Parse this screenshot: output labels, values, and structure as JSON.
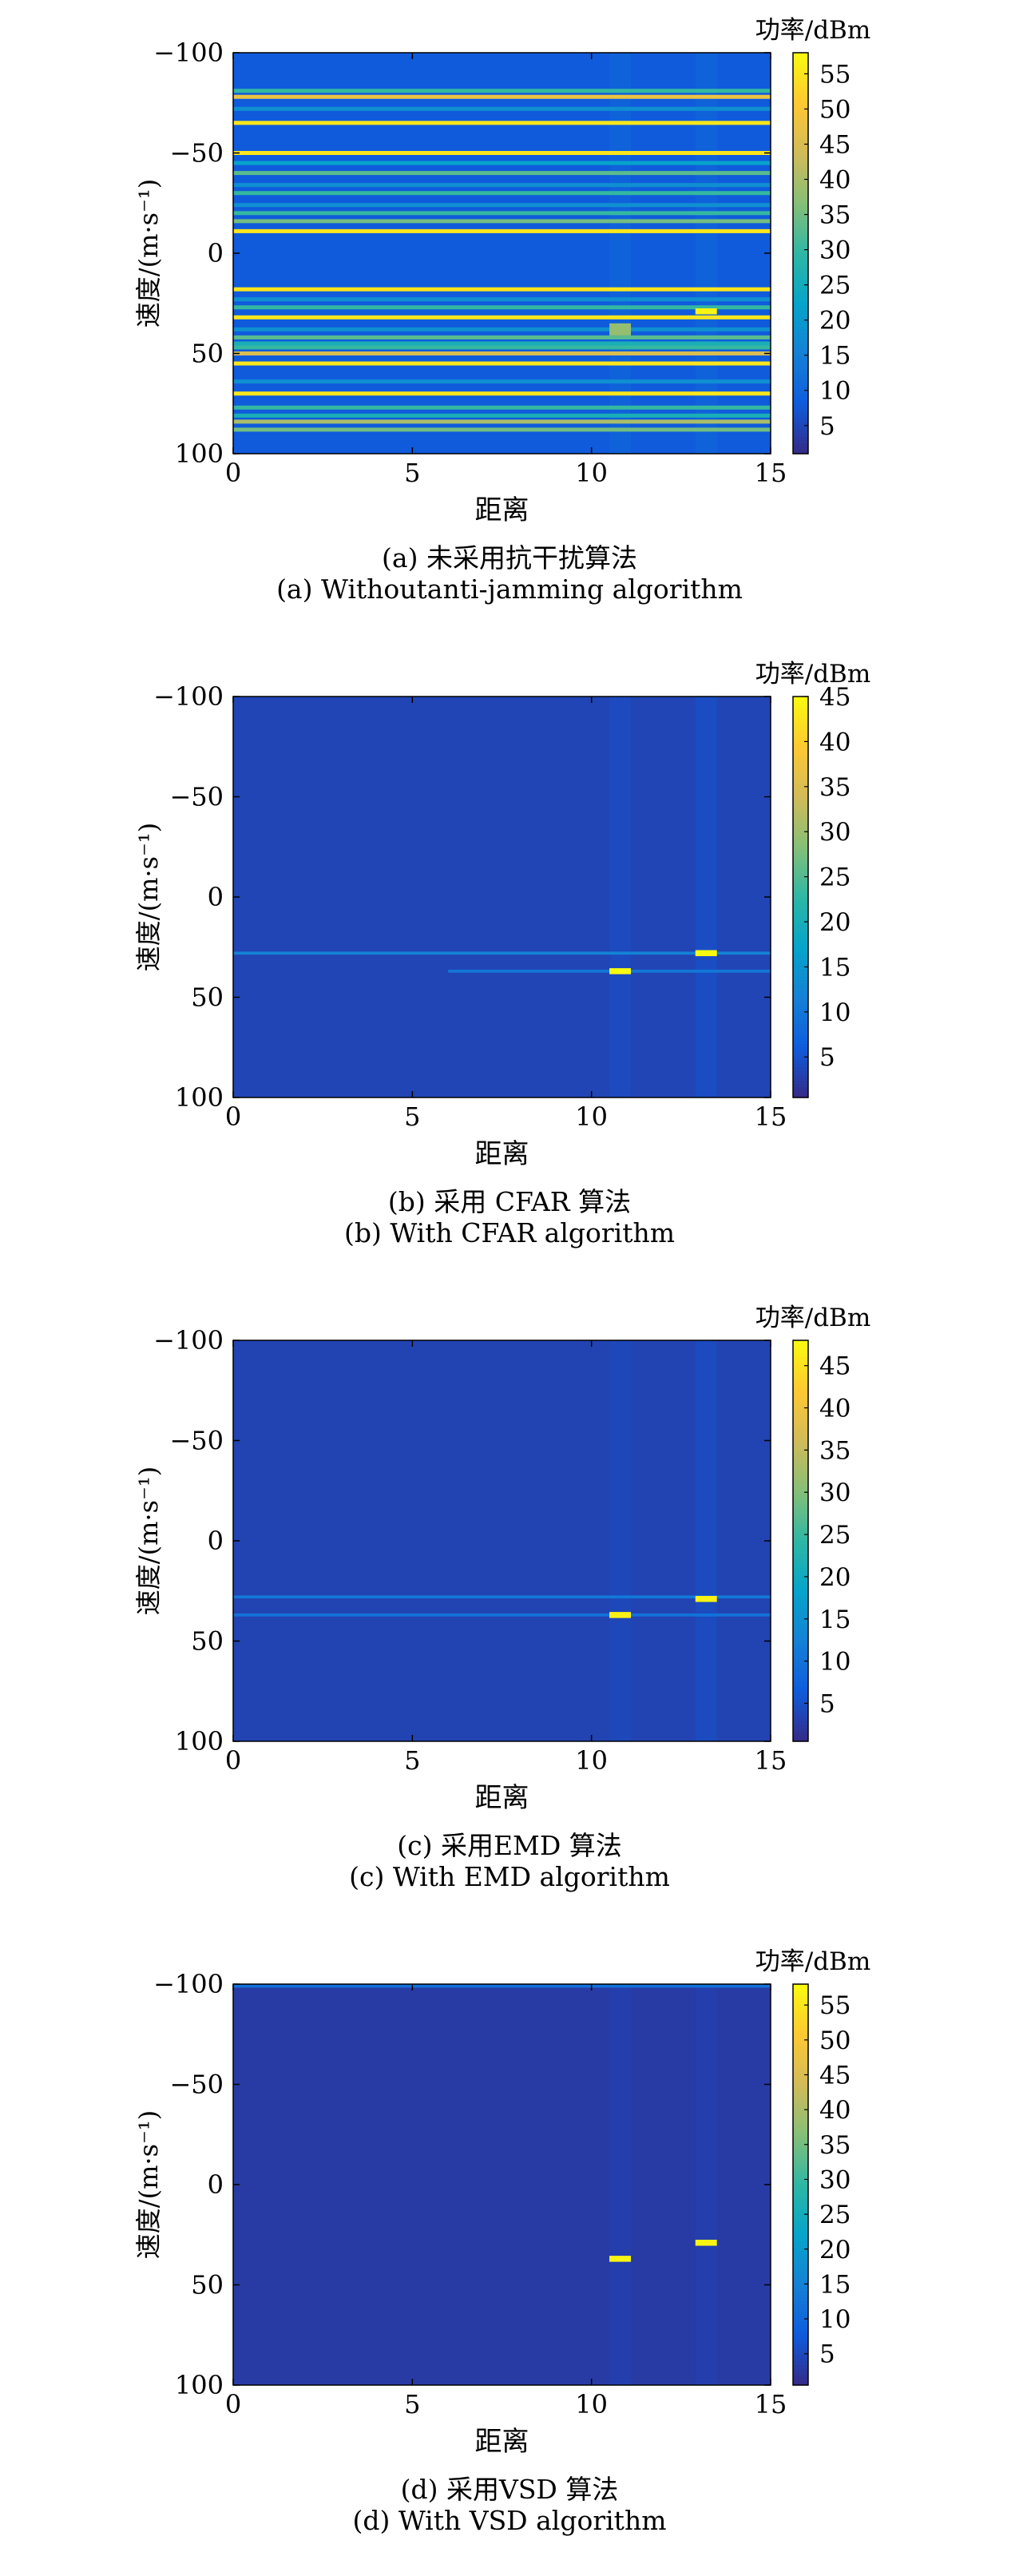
{
  "chart_data": [
    {
      "type": "heatmap",
      "panel_id": "a",
      "caption_zh": "(a) 未采用抗干扰算法",
      "caption_en": "(a) Withoutanti-jamming algorithm",
      "xlabel": "距离",
      "ylabel": "速度/(m·s⁻¹)",
      "colorbar_label": "功率/dBm",
      "xlim": [
        0,
        15
      ],
      "ylim": [
        -100,
        100
      ],
      "y_reversed": true,
      "x_ticks": [
        0,
        5,
        10,
        15
      ],
      "y_ticks": [
        -100,
        -50,
        0,
        50,
        100
      ],
      "x_tick_labels": [
        "0",
        "5",
        "10",
        "15"
      ],
      "y_tick_labels": [
        "−100",
        "−50",
        "0",
        "50",
        "100"
      ],
      "clim": [
        1,
        58
      ],
      "colorbar_ticks": [
        5,
        10,
        15,
        20,
        25,
        30,
        35,
        40,
        45,
        50,
        55
      ],
      "colorbar_tick_labels": [
        "5",
        "10",
        "15",
        "20",
        "25",
        "30",
        "35",
        "40",
        "45",
        "50",
        "55"
      ],
      "background_level": 8,
      "stripes": [
        {
          "y": -81,
          "level": 30,
          "width": 2
        },
        {
          "y": -78,
          "level": 48,
          "width": 2
        },
        {
          "y": -72,
          "level": 18,
          "width": 2
        },
        {
          "y": -65,
          "level": 55,
          "width": 2
        },
        {
          "y": -50,
          "level": 55,
          "width": 2
        },
        {
          "y": -45,
          "level": 22,
          "width": 2
        },
        {
          "y": -40,
          "level": 33,
          "width": 2
        },
        {
          "y": -34,
          "level": 18,
          "width": 2
        },
        {
          "y": -30,
          "level": 30,
          "width": 2
        },
        {
          "y": -24,
          "level": 18,
          "width": 2
        },
        {
          "y": -20,
          "level": 30,
          "width": 2
        },
        {
          "y": -16,
          "level": 35,
          "width": 2
        },
        {
          "y": -11,
          "level": 55,
          "width": 2
        },
        {
          "y": 18,
          "level": 55,
          "width": 2
        },
        {
          "y": 23,
          "level": 18,
          "width": 2
        },
        {
          "y": 27,
          "level": 30,
          "width": 2
        },
        {
          "y": 32,
          "level": 55,
          "width": 2
        },
        {
          "y": 38,
          "level": 18,
          "width": 2
        },
        {
          "y": 42,
          "level": 33,
          "width": 2
        },
        {
          "y": 45,
          "level": 26,
          "width": 2
        },
        {
          "y": 47,
          "level": 30,
          "width": 2
        },
        {
          "y": 50,
          "level": 45,
          "width": 2
        },
        {
          "y": 55,
          "level": 55,
          "width": 2
        },
        {
          "y": 64,
          "level": 18,
          "width": 2
        },
        {
          "y": 70,
          "level": 55,
          "width": 2
        },
        {
          "y": 77,
          "level": 30,
          "width": 2
        },
        {
          "y": 81,
          "level": 26,
          "width": 2
        },
        {
          "y": 84,
          "level": 40,
          "width": 2
        },
        {
          "y": 88,
          "level": 35,
          "width": 2
        }
      ],
      "targets": [
        {
          "x": [
            10.5,
            11.1
          ],
          "y": 38,
          "level": 38,
          "height": 6,
          "column_level": 12
        },
        {
          "x": [
            12.9,
            13.5
          ],
          "y": 29,
          "level": 57,
          "height": 3,
          "column_level": 12
        }
      ]
    },
    {
      "type": "heatmap",
      "panel_id": "b",
      "caption_zh": "(b) 采用 CFAR 算法",
      "caption_en": "(b) With CFAR algorithm",
      "xlabel": "距离",
      "ylabel": "速度/(m·s⁻¹)",
      "colorbar_label": "功率/dBm",
      "xlim": [
        0,
        15
      ],
      "ylim": [
        -100,
        100
      ],
      "y_reversed": true,
      "x_ticks": [
        0,
        5,
        10,
        15
      ],
      "y_ticks": [
        -100,
        -50,
        0,
        50,
        100
      ],
      "x_tick_labels": [
        "0",
        "5",
        "10",
        "15"
      ],
      "y_tick_labels": [
        "−100",
        "−50",
        "0",
        "50",
        "100"
      ],
      "clim": [
        0.5,
        45
      ],
      "colorbar_ticks": [
        5,
        10,
        15,
        20,
        25,
        30,
        35,
        40,
        45
      ],
      "colorbar_tick_labels": [
        "5",
        "10",
        "15",
        "20",
        "25",
        "30",
        "35",
        "40",
        "45"
      ],
      "background_level": 3.5,
      "stripes": [
        {
          "y": 28,
          "level": 12,
          "width": 1.5,
          "x_range": [
            0,
            15
          ]
        },
        {
          "y": 37,
          "level": 10,
          "width": 1.5,
          "x_range": [
            6,
            15
          ]
        }
      ],
      "targets": [
        {
          "x": [
            10.5,
            11.1
          ],
          "y": 37,
          "level": 45,
          "height": 3,
          "column_level": 5
        },
        {
          "x": [
            12.9,
            13.5
          ],
          "y": 28,
          "level": 45,
          "height": 3,
          "column_level": 6
        }
      ]
    },
    {
      "type": "heatmap",
      "panel_id": "c",
      "caption_zh": "(c) 采用EMD 算法",
      "caption_en": "(c) With EMD algorithm",
      "xlabel": "距离",
      "ylabel": "速度/(m·s⁻¹)",
      "colorbar_label": "功率/dBm",
      "xlim": [
        0,
        15
      ],
      "ylim": [
        -100,
        100
      ],
      "y_reversed": true,
      "x_ticks": [
        0,
        5,
        10,
        15
      ],
      "y_ticks": [
        -100,
        -50,
        0,
        50,
        100
      ],
      "x_tick_labels": [
        "0",
        "5",
        "10",
        "15"
      ],
      "y_tick_labels": [
        "−100",
        "−50",
        "0",
        "50",
        "100"
      ],
      "clim": [
        0.5,
        48
      ],
      "colorbar_ticks": [
        5,
        10,
        15,
        20,
        25,
        30,
        35,
        40,
        45
      ],
      "colorbar_tick_labels": [
        "5",
        "10",
        "15",
        "20",
        "25",
        "30",
        "35",
        "40",
        "45"
      ],
      "background_level": 3.5,
      "stripes": [
        {
          "y": 28,
          "level": 11,
          "width": 1.5,
          "x_range": [
            0,
            15
          ]
        },
        {
          "y": 37,
          "level": 10,
          "width": 1.5,
          "x_range": [
            0,
            15
          ]
        }
      ],
      "targets": [
        {
          "x": [
            10.5,
            11.1
          ],
          "y": 37,
          "level": 47,
          "height": 3,
          "column_level": 5
        },
        {
          "x": [
            12.9,
            13.5
          ],
          "y": 29,
          "level": 47,
          "height": 3,
          "column_level": 6
        }
      ]
    },
    {
      "type": "heatmap",
      "panel_id": "d",
      "caption_zh": "(d) 采用VSD 算法",
      "caption_en": "(d) With VSD algorithm",
      "xlabel": "距离",
      "ylabel": "速度/(m·s⁻¹)",
      "colorbar_label": "功率/dBm",
      "xlim": [
        0,
        15
      ],
      "ylim": [
        -100,
        100
      ],
      "y_reversed": true,
      "x_ticks": [
        0,
        5,
        10,
        15
      ],
      "y_ticks": [
        -100,
        -50,
        0,
        50,
        100
      ],
      "x_tick_labels": [
        "0",
        "5",
        "10",
        "15"
      ],
      "y_tick_labels": [
        "−100",
        "−50",
        "0",
        "50",
        "100"
      ],
      "clim": [
        0.5,
        58
      ],
      "colorbar_ticks": [
        5,
        10,
        15,
        20,
        25,
        30,
        35,
        40,
        45,
        50,
        55
      ],
      "colorbar_tick_labels": [
        "5",
        "10",
        "15",
        "20",
        "25",
        "30",
        "35",
        "40",
        "45",
        "50",
        "55"
      ],
      "background_level": 3,
      "stripes": [
        {
          "y": -99,
          "level": 12,
          "width": 1.5,
          "x_range": [
            0,
            15
          ]
        }
      ],
      "targets": [
        {
          "x": [
            10.5,
            11.1
          ],
          "y": 37,
          "level": 57,
          "height": 3,
          "column_level": 5
        },
        {
          "x": [
            12.9,
            13.5
          ],
          "y": 29,
          "level": 57,
          "height": 3,
          "column_level": 5
        }
      ]
    }
  ]
}
